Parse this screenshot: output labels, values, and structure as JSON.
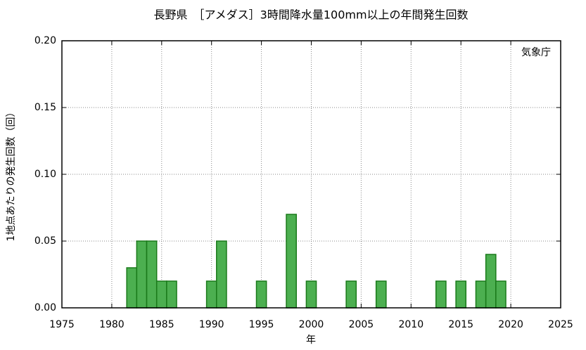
{
  "chart_data": {
    "type": "bar",
    "title": "長野県　［アメダス］3時間降水量100mm以上の年間発生回数",
    "annotation": "気象庁",
    "xlabel": "年",
    "ylabel": "1地点あたりの発生回数（回）",
    "x": [
      1982,
      1983,
      1984,
      1985,
      1986,
      1990,
      1991,
      1995,
      1998,
      2000,
      2004,
      2007,
      2013,
      2015,
      2017,
      2018,
      2019
    ],
    "values": [
      0.03,
      0.05,
      0.05,
      0.02,
      0.02,
      0.02,
      0.05,
      0.02,
      0.07,
      0.02,
      0.02,
      0.02,
      0.02,
      0.02,
      0.02,
      0.04,
      0.02
    ],
    "color": "#4caf50",
    "edge_color": "#1a7a1a",
    "xlim": [
      1975,
      2025
    ],
    "xticks": [
      1975,
      1980,
      1985,
      1990,
      1995,
      2000,
      2005,
      2010,
      2015,
      2020,
      2025
    ],
    "ylim": [
      0,
      0.2
    ],
    "yticks": [
      {
        "value": 0,
        "label": "0.00"
      },
      {
        "value": 0.05,
        "label": "0.05"
      },
      {
        "value": 0.1,
        "label": "0.10"
      },
      {
        "value": 0.15,
        "label": "0.15"
      },
      {
        "value": 0.2,
        "label": "0.20"
      }
    ],
    "grid": true
  }
}
